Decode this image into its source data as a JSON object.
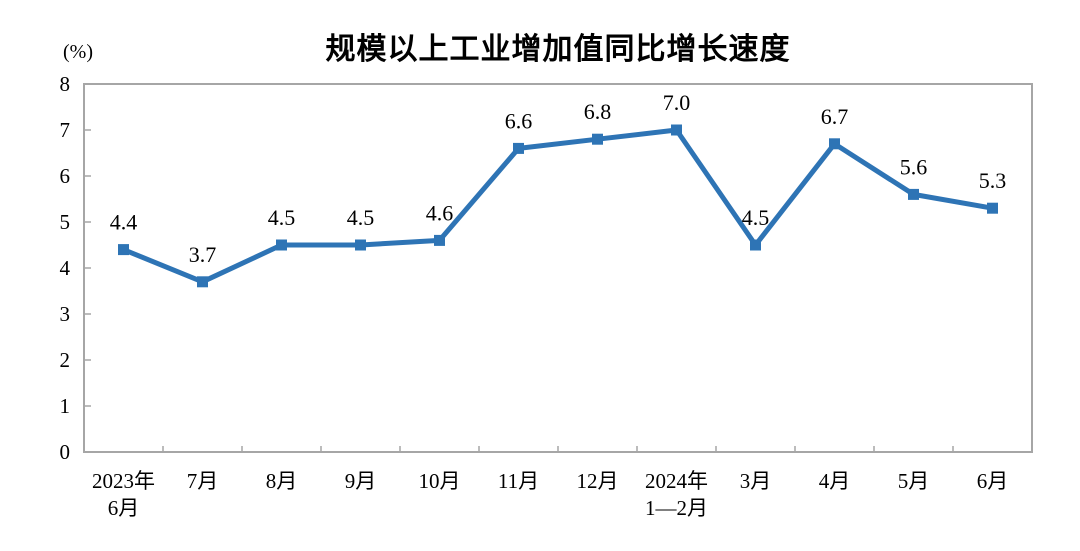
{
  "title": "规模以上工业增加值同比增长速度",
  "y_unit_label": "(%)",
  "chart_data": {
    "type": "line",
    "title": "规模以上工业增加值同比增长速度",
    "xlabel": "",
    "ylabel": "(%)",
    "categories": [
      "2023年\n6月",
      "7月",
      "8月",
      "9月",
      "10月",
      "11月",
      "12月",
      "2024年\n1—2月",
      "3月",
      "4月",
      "5月",
      "6月"
    ],
    "values": [
      4.4,
      3.7,
      4.5,
      4.5,
      4.6,
      6.6,
      6.8,
      7.0,
      4.5,
      6.7,
      5.6,
      5.3
    ],
    "ylim": [
      0,
      8
    ],
    "y_ticks": [
      0,
      1,
      2,
      3,
      4,
      5,
      6,
      7,
      8
    ],
    "grid": false,
    "legend": "none",
    "line_color": "#2E74B5",
    "marker": "square",
    "axis_color": "#A6A6A6",
    "text_color": "#000000"
  }
}
